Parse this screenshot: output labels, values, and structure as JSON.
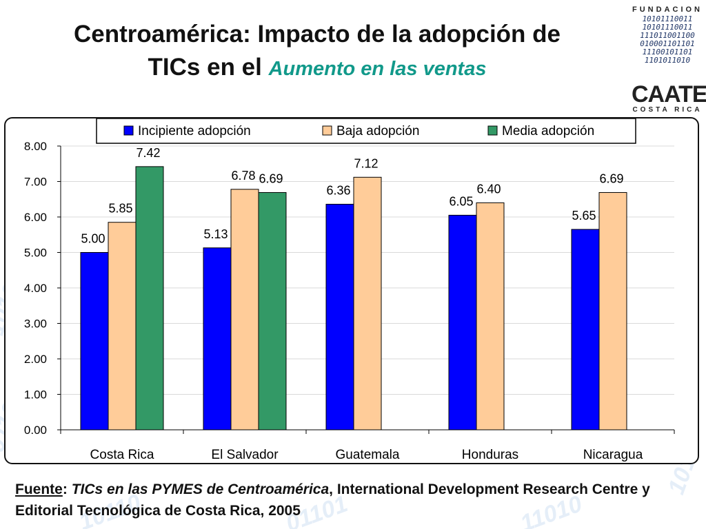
{
  "title": {
    "line1": "Centroamérica: Impacto de la adopción de",
    "line2_prefix": "TICs en el",
    "highlight": "Aumento en las ventas"
  },
  "logo": {
    "top": "FUNDACION",
    "binary": [
      "10101110011",
      "10101110011",
      "111011001100",
      "010001101101",
      "11100101101",
      "1101011010"
    ],
    "name": "CAATEC",
    "sub": "COSTA RICA"
  },
  "source": {
    "label": "Fuente",
    "colon": ":",
    "title": "TICs en las PYMES de Centroamérica",
    "rest": ", International Development Research Centre y Editorial Tecnológica de Costa Rica, 2005"
  },
  "colors": {
    "incipiente": "#0000ff",
    "baja": "#ffcc99",
    "media": "#339966",
    "title_accent": "#11998a"
  },
  "chart_data": {
    "type": "bar",
    "title": "",
    "xlabel": "",
    "ylabel": "",
    "ylim": [
      0,
      8
    ],
    "yticks": [
      "0.00",
      "1.00",
      "2.00",
      "3.00",
      "4.00",
      "5.00",
      "6.00",
      "7.00",
      "8.00"
    ],
    "grid": true,
    "legend_position": "top",
    "categories": [
      "Costa Rica",
      "El Salvador",
      "Guatemala",
      "Honduras",
      "Nicaragua"
    ],
    "series": [
      {
        "name": "Incipiente adopción",
        "color": "#0000ff",
        "values": [
          5.0,
          5.13,
          6.36,
          6.05,
          5.65
        ],
        "labels": [
          "5.00",
          "5.13",
          "6.36",
          "6.05",
          "5.65"
        ]
      },
      {
        "name": "Baja adopción",
        "color": "#ffcc99",
        "values": [
          5.85,
          6.78,
          7.12,
          6.4,
          6.69
        ],
        "labels": [
          "5.85",
          "6.78",
          "7.12",
          "6.40",
          "6.69"
        ]
      },
      {
        "name": "Media adopción",
        "color": "#339966",
        "values": [
          7.42,
          6.69,
          null,
          null,
          null
        ],
        "labels": [
          "7.42",
          "6.69",
          null,
          null,
          null
        ]
      }
    ]
  }
}
